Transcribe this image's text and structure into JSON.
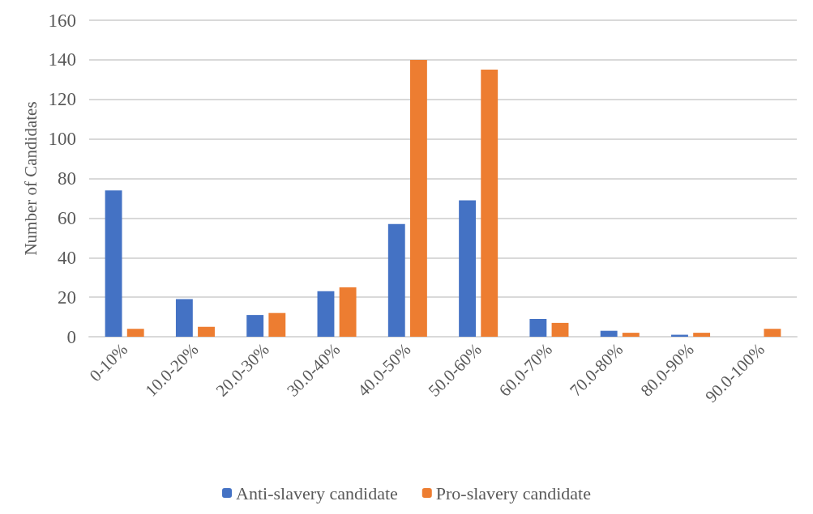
{
  "chart_data": {
    "type": "bar",
    "ylabel": "Number of Candidates",
    "categories": [
      "0-10%",
      "10.0-20%",
      "20.0-30%",
      "30.0-40%",
      "40.0-50%",
      "50.0-60%",
      "60.0-70%",
      "70.0-80%",
      "80.0-90%",
      "90.0-100%"
    ],
    "series": [
      {
        "name": "Anti-slavery candidate",
        "color": "#4472c4",
        "values": [
          74,
          19,
          11,
          23,
          57,
          69,
          9,
          3,
          1,
          0
        ]
      },
      {
        "name": "Pro-slavery candidate",
        "color": "#ed7d31",
        "values": [
          4,
          5,
          12,
          25,
          140,
          135,
          7,
          2,
          2,
          4
        ]
      }
    ],
    "ylim": [
      0,
      160
    ],
    "yticks": [
      0,
      20,
      40,
      60,
      80,
      100,
      120,
      140,
      160
    ],
    "grid": "y",
    "legend": "bottom"
  }
}
